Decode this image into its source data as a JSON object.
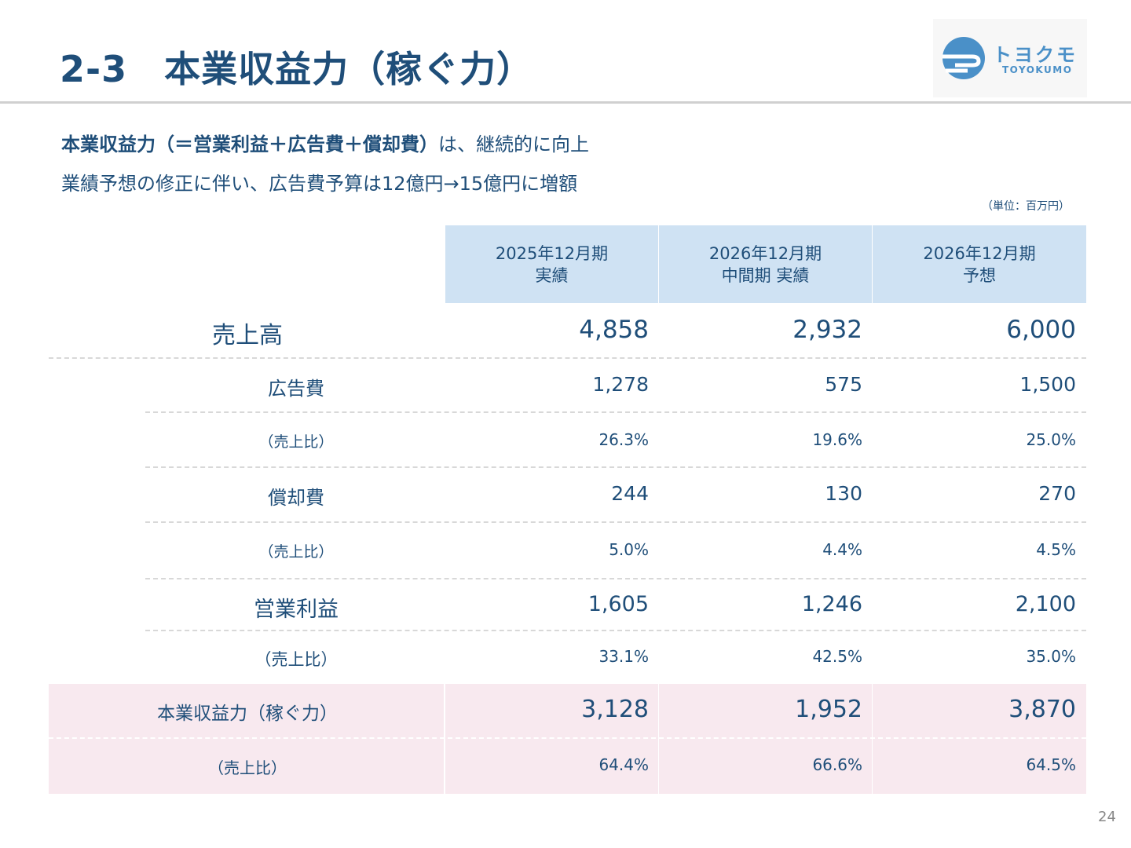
{
  "header": {
    "title": "2-3　本業収益力（稼ぐ力）",
    "logo": {
      "kana": "トヨクモ",
      "roman": "TOYOKUMO"
    }
  },
  "lead": {
    "line1_strong": "本業収益力（＝営業利益＋広告費＋償却費）",
    "line1_rest": "は、継続的に向上",
    "line2": "業績予想の修正に伴い、広告費予算は12億円→15億円に増額"
  },
  "unit_label": "（単位：百万円）",
  "table": {
    "columns": [
      {
        "line1": "2025年12月期",
        "line2": "実績"
      },
      {
        "line1": "2026年12月期",
        "line2": "中間期 実績"
      },
      {
        "line1": "2026年12月期",
        "line2": "予想"
      }
    ],
    "rows": [
      {
        "label": "売上高",
        "values": [
          "4,858",
          "2,932",
          "6,000"
        ]
      },
      {
        "label": "広告費",
        "values": [
          "1,278",
          "575",
          "1,500"
        ]
      },
      {
        "label": "（売上比）",
        "values": [
          "26.3%",
          "19.6%",
          "25.0%"
        ]
      },
      {
        "label": "償却費",
        "values": [
          "244",
          "130",
          "270"
        ]
      },
      {
        "label": "（売上比）",
        "values": [
          "5.0%",
          "4.4%",
          "4.5%"
        ]
      },
      {
        "label": "営業利益",
        "values": [
          "1,605",
          "1,246",
          "2,100"
        ]
      },
      {
        "label": "（売上比）",
        "values": [
          "33.1%",
          "42.5%",
          "35.0%"
        ]
      },
      {
        "label": "本業収益力（稼ぐ力）",
        "values": [
          "3,128",
          "1,952",
          "3,870"
        ]
      },
      {
        "label": "（売上比）",
        "values": [
          "64.4%",
          "66.6%",
          "64.5%"
        ]
      }
    ]
  },
  "colors": {
    "text": "#1f4e79",
    "header_bg": "#cfe2f3",
    "highlight_bg": "#f8e9ef",
    "logo": "#4a90c8"
  },
  "page_number": "24"
}
